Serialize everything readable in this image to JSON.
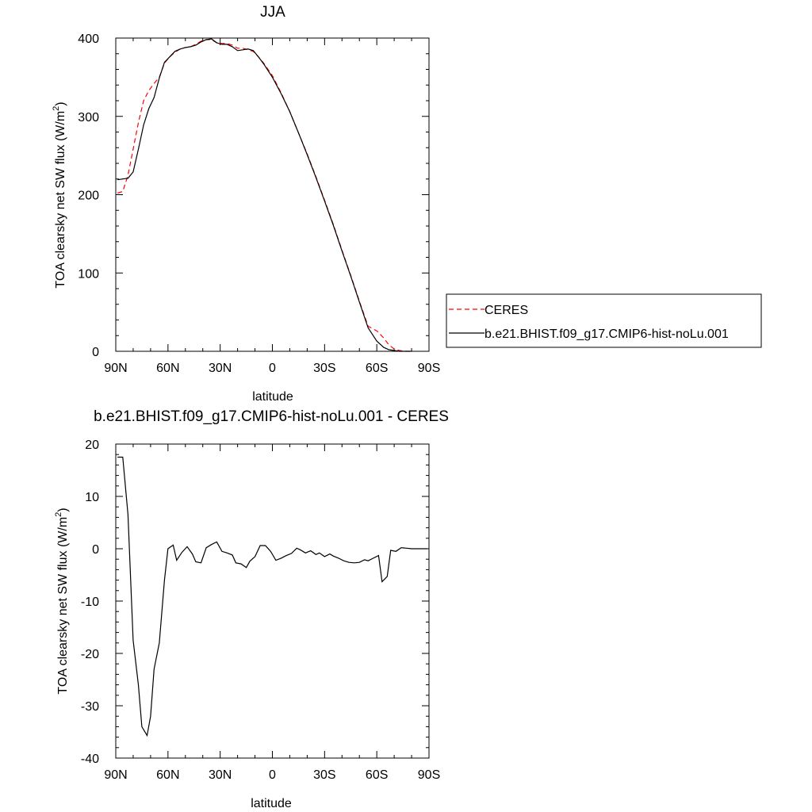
{
  "chart_data": [
    {
      "type": "line",
      "title": "JJA",
      "xlabel": "latitude",
      "ylabel": "TOA clearsky net SW flux (W/m²)",
      "xlim": [
        90,
        -90
      ],
      "ylim": [
        0,
        400
      ],
      "x_ticks": [
        "90N",
        "60N",
        "30N",
        "0",
        "30S",
        "60S",
        "90S"
      ],
      "y_ticks": [
        "0",
        "100",
        "200",
        "300",
        "400"
      ],
      "legend": {
        "position": "right",
        "entries": [
          "CERES",
          "b.e21.BHIST.f09_g17.CMIP6-hist-noLu.001"
        ]
      },
      "series": [
        {
          "name": "CERES",
          "color": "#ff0000",
          "dash": "dashed",
          "x": [
            89,
            86,
            83,
            80,
            77,
            74,
            71,
            68,
            65,
            62,
            59,
            56,
            53,
            50,
            47,
            44,
            41,
            38,
            35,
            32,
            29,
            26,
            23,
            20,
            17,
            14,
            11,
            8,
            5,
            0,
            -5,
            -10,
            -15,
            -20,
            -25,
            -30,
            -35,
            -40,
            -45,
            -50,
            -55,
            -60,
            -64,
            -67,
            -70,
            -73,
            -76,
            -80
          ],
          "values": [
            202,
            204,
            225,
            258,
            292,
            320,
            333,
            342,
            350,
            368,
            376,
            382,
            386,
            388,
            389,
            392,
            396,
            398,
            398,
            394,
            393,
            393,
            391,
            387,
            387,
            385,
            383,
            376,
            368,
            352,
            330,
            306,
            279,
            252,
            223,
            193,
            162,
            129,
            97,
            64,
            32,
            26,
            17,
            8,
            3,
            1,
            0,
            0
          ]
        },
        {
          "name": "b.e21.BHIST.f09_g17.CMIP6-hist-noLu.001",
          "color": "#000000",
          "dash": "solid",
          "x": [
            89,
            86,
            83,
            80,
            77,
            74,
            71,
            68,
            65,
            62,
            59,
            56,
            53,
            50,
            47,
            44,
            41,
            38,
            35,
            32,
            29,
            26,
            23,
            20,
            17,
            14,
            11,
            8,
            5,
            0,
            -5,
            -10,
            -15,
            -20,
            -25,
            -30,
            -35,
            -40,
            -45,
            -50,
            -55,
            -60,
            -64,
            -67,
            -70,
            -73,
            -76,
            -80
          ],
          "values": [
            219,
            220,
            221,
            229,
            258,
            289,
            310,
            324,
            349,
            369,
            376,
            383,
            386,
            388,
            389,
            391,
            395,
            398,
            399,
            394,
            392,
            392,
            389,
            384,
            385,
            386,
            384,
            376,
            367,
            350,
            329,
            306,
            279,
            251,
            222,
            192,
            161,
            128,
            96,
            63,
            30,
            13,
            5,
            2,
            1,
            0,
            0,
            0
          ]
        }
      ]
    },
    {
      "type": "line",
      "title": "b.e21.BHIST.f09_g17.CMIP6-hist-noLu.001 - CERES",
      "xlabel": "latitude",
      "ylabel": "TOA clearsky net SW flux (W/m²)",
      "xlim": [
        90,
        -90
      ],
      "ylim": [
        -40,
        20
      ],
      "x_ticks": [
        "90N",
        "60N",
        "30N",
        "0",
        "30S",
        "60S",
        "90S"
      ],
      "y_ticks": [
        "-40",
        "-30",
        "-20",
        "-10",
        "0",
        "10",
        "20"
      ],
      "series": [
        {
          "color": "#000000",
          "dash": "solid",
          "x": [
            89,
            86,
            83,
            80,
            77,
            75,
            72,
            70,
            68,
            65,
            62,
            60,
            57,
            55,
            52,
            49,
            46,
            44,
            41,
            38,
            35,
            32,
            29,
            26,
            23,
            21,
            18,
            15,
            13,
            10,
            7,
            4,
            1,
            -2,
            -5,
            -8,
            -11,
            -14,
            -16,
            -19,
            -22,
            -25,
            -27,
            -30,
            -33,
            -35,
            -38,
            -41,
            -44,
            -47,
            -50,
            -53,
            -55,
            -58,
            -61,
            -63,
            -66,
            -68,
            -71,
            -74,
            -77,
            -80,
            -83,
            -86,
            -89
          ],
          "values": [
            17.5,
            17.5,
            6.5,
            -17.5,
            -26,
            -34,
            -35.7,
            -32,
            -23,
            -18,
            -6,
            0,
            0.7,
            -2.2,
            -0.7,
            0.4,
            -1,
            -2.5,
            -2.7,
            0.2,
            0.8,
            1.3,
            -0.5,
            -0.8,
            -1.2,
            -2.7,
            -2.9,
            -3.6,
            -2.4,
            -1.5,
            0.6,
            0.6,
            -0.5,
            -2.2,
            -1.8,
            -1.3,
            -0.9,
            0.1,
            -0.2,
            -0.8,
            -0.4,
            -1.1,
            -0.8,
            -1.5,
            -1,
            -1.4,
            -1.8,
            -2.3,
            -2.6,
            -2.7,
            -2.6,
            -2.1,
            -2.3,
            -1.8,
            -1.3,
            -6.3,
            -5.3,
            -0.3,
            -0.5,
            0.2,
            0.1,
            0,
            0,
            0,
            0
          ]
        }
      ]
    }
  ]
}
